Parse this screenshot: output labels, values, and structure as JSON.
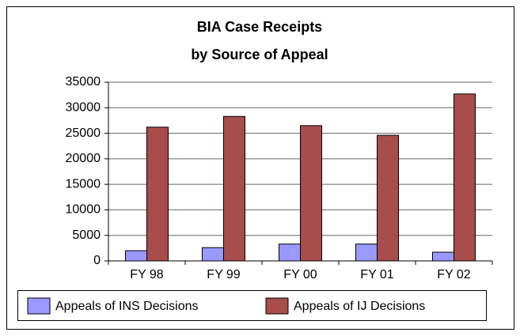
{
  "chart_data": {
    "type": "bar",
    "title": "BIA Case Receipts",
    "subtitle": "by Source of Appeal",
    "categories": [
      "FY 98",
      "FY 99",
      "FY 00",
      "FY 01",
      "FY 02"
    ],
    "series": [
      {
        "name": "Appeals of INS Decisions",
        "color": "#9999ff",
        "values": [
          2000,
          2600,
          3300,
          3300,
          1700
        ]
      },
      {
        "name": "Appeals of IJ Decisions",
        "color": "#a84c4c",
        "values": [
          26200,
          28300,
          26500,
          24600,
          32700
        ]
      }
    ],
    "ylim": [
      0,
      35000
    ],
    "yticks": [
      0,
      5000,
      10000,
      15000,
      20000,
      25000,
      30000,
      35000
    ],
    "grid": true,
    "legend": "bottom"
  }
}
